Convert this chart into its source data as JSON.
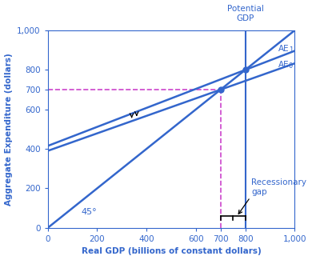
{
  "xlim": [
    0,
    1000
  ],
  "ylim": [
    0,
    1000
  ],
  "xticks": [
    0,
    200,
    400,
    600,
    700,
    800,
    1000
  ],
  "yticks": [
    0,
    200,
    400,
    600,
    700,
    800,
    1000
  ],
  "xlabel": "Real GDP (billions of constant dollars)",
  "ylabel": "Aggregate Expenditure (dollars)",
  "line_color": "#3366cc",
  "dashed_color": "#cc44cc",
  "potential_gdp_x": 800,
  "eq0_x": 700,
  "eq0_y": 700,
  "eq1_x": 800,
  "eq1_y": 800,
  "AE0_intercept": 390,
  "AE1_intercept": 415,
  "label_AE1": "AE",
  "label_AE0": "AE",
  "label_AE1_sub": "1",
  "label_AE0_sub": "0",
  "label_potential": "Potential\nGDP",
  "label_45": "45°",
  "label_recessionary": "Recessionary\ngap",
  "recessionary_bracket_y": 40,
  "arr1_x": 340,
  "arr2_x": 360,
  "background_color": "#ffffff",
  "text_color": "#3366cc",
  "figwidth": 3.9,
  "figheight": 3.25,
  "dpi": 100
}
